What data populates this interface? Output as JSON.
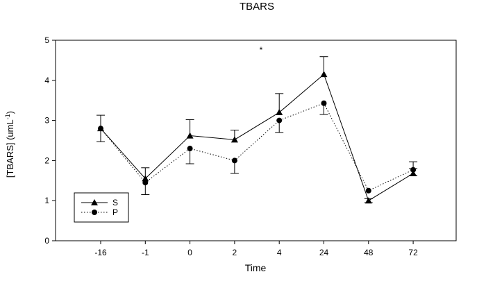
{
  "chart_data": {
    "type": "line",
    "title": "TBARS",
    "xlabel": "Time",
    "ylabel": "[TBARS] (umL",
    "ylabel_superscript": "-1",
    "ylabel_suffix": ")",
    "categories": [
      "-16",
      "-1",
      "0",
      "2",
      "4",
      "24",
      "48",
      "72"
    ],
    "ylim": [
      0,
      5
    ],
    "yticks": [
      "0",
      "1",
      "2",
      "3",
      "4",
      "5"
    ],
    "grid": false,
    "legend_position": "bottom-left",
    "annotation": "*",
    "series": [
      {
        "name": "S",
        "marker": "triangle",
        "line_style": "solid",
        "values": [
          2.8,
          1.55,
          2.62,
          2.52,
          3.2,
          4.15,
          1.0,
          1.68
        ],
        "error_plus": [
          0.33,
          0.27,
          0.4,
          0.24,
          0.47,
          0.44,
          0.05,
          0.12
        ],
        "error_minus": [
          0.33,
          0.0,
          0.0,
          0.0,
          0.0,
          0.0,
          0.05,
          0.05
        ]
      },
      {
        "name": "P",
        "marker": "circle",
        "line_style": "dotted",
        "values": [
          2.8,
          1.45,
          2.3,
          2.0,
          3.0,
          3.43,
          1.25,
          1.77
        ],
        "error_plus": [
          0.0,
          0.0,
          0.0,
          0.0,
          0.0,
          0.0,
          0.0,
          0.2
        ],
        "error_minus": [
          0.0,
          0.3,
          0.38,
          0.32,
          0.3,
          0.28,
          0.0,
          0.0
        ]
      }
    ]
  }
}
